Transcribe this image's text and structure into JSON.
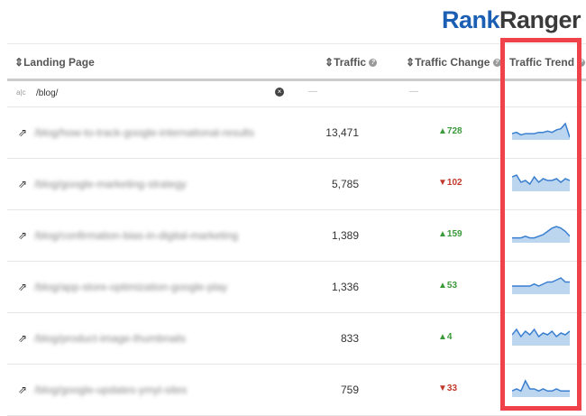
{
  "logo": {
    "part1": "Rank",
    "part2": "Ranger"
  },
  "header": {
    "landing_page": "Landing Page",
    "traffic": "Traffic",
    "traffic_change": "Traffic Change",
    "traffic_trend": "Traffic Trend"
  },
  "filter": {
    "value": "/blog/",
    "traffic": "—",
    "change": "—"
  },
  "rows": [
    {
      "url": "/blog/how-to-track-google-international-results",
      "traffic": "13,471",
      "change": "728",
      "dir": "up",
      "trend": [
        5,
        6,
        4,
        5,
        5,
        5,
        6,
        6,
        7,
        6,
        8,
        9,
        13,
        2
      ]
    },
    {
      "url": "/blog/google-marketing-strategy",
      "traffic": "5,785",
      "change": "102",
      "dir": "down",
      "trend": [
        8,
        9,
        5,
        6,
        4,
        8,
        5,
        7,
        6,
        6,
        7,
        5,
        7,
        6
      ]
    },
    {
      "url": "/blog/confirmation-bias-in-digital-marketing",
      "traffic": "1,389",
      "change": "159",
      "dir": "up",
      "trend": [
        3,
        3,
        3,
        4,
        3,
        3,
        4,
        5,
        7,
        9,
        10,
        9,
        7,
        4
      ]
    },
    {
      "url": "/blog/app-store-optimization-google-play",
      "traffic": "1,336",
      "change": "53",
      "dir": "up",
      "trend": [
        4,
        4,
        4,
        4,
        4,
        5,
        4,
        5,
        6,
        6,
        7,
        8,
        6,
        6
      ]
    },
    {
      "url": "/blog/product-image-thumbnails",
      "traffic": "833",
      "change": "4",
      "dir": "up",
      "trend": [
        6,
        9,
        5,
        8,
        6,
        9,
        5,
        7,
        6,
        8,
        5,
        7,
        6,
        8
      ]
    },
    {
      "url": "/blog/google-updates-ymyl-sites",
      "traffic": "759",
      "change": "33",
      "dir": "down",
      "trend": [
        3,
        4,
        3,
        8,
        4,
        4,
        3,
        4,
        3,
        3,
        4,
        3,
        3,
        3
      ]
    }
  ],
  "colors": {
    "highlight": "#f0424a",
    "spark_line": "#3a7fd0",
    "spark_fill": "#bcd6f0",
    "up": "#3a9a3a",
    "down": "#c0392b"
  }
}
